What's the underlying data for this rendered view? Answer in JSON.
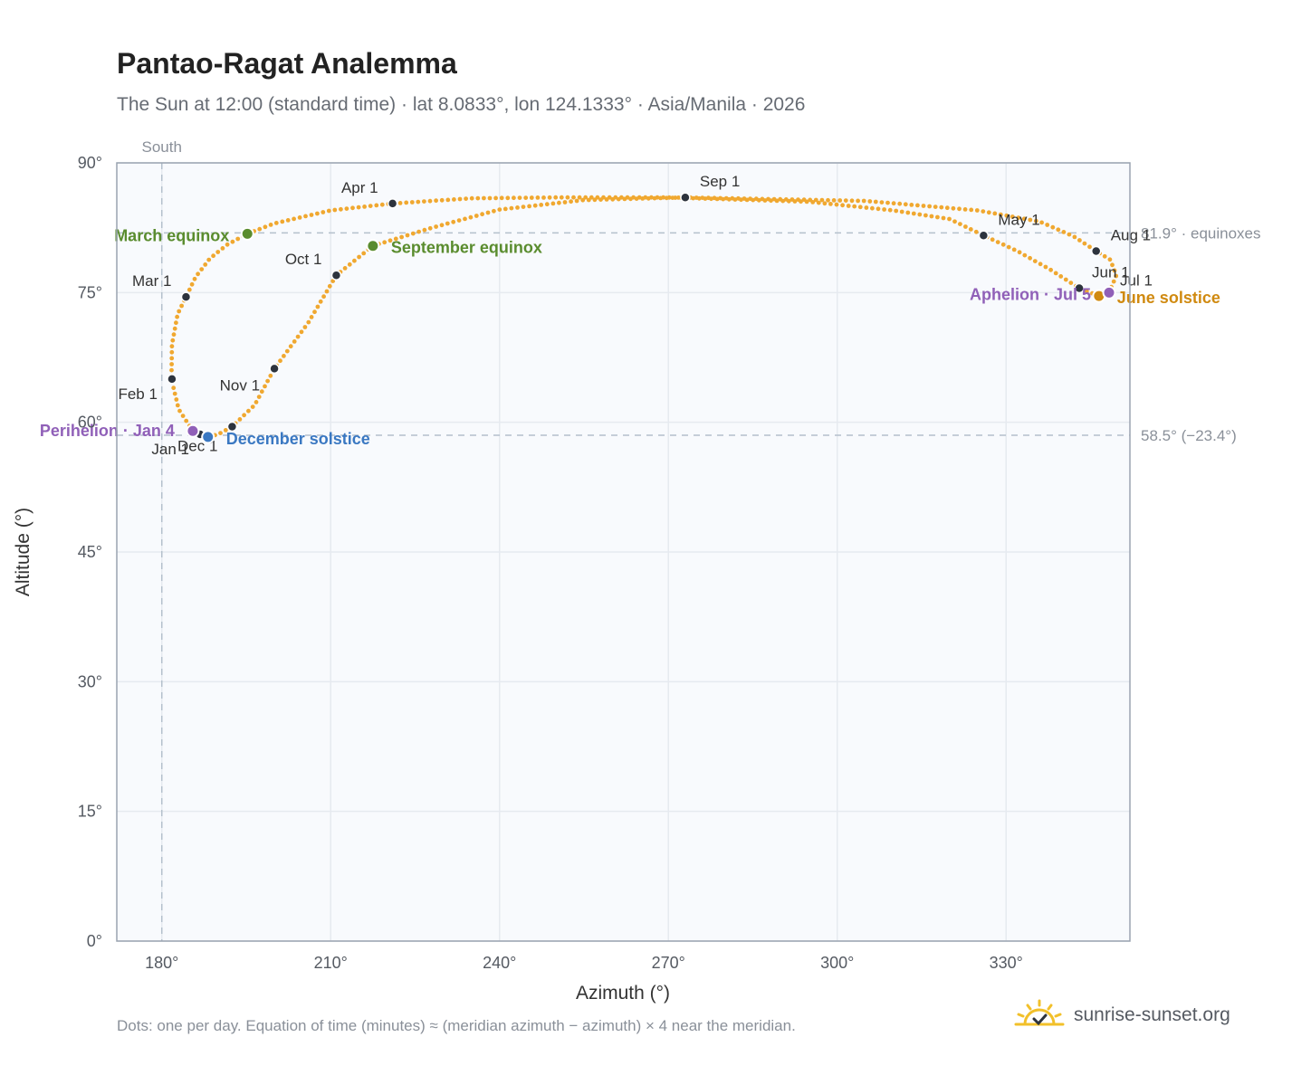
{
  "title": "Pantao-Ragat Analemma",
  "subtitle": "The Sun at 12:00 (standard time) · lat 8.0833°, lon 124.1333° · Asia/Manila · 2026",
  "footnote": "Dots: one per day. Equation of time (minutes) ≈ (meridian azimuth − azimuth) × 4 near the meridian.",
  "brand": {
    "name": "sunrise-sunset.org",
    "icon": "sun-logo-icon"
  },
  "colors": {
    "path": "#f0a830",
    "month_dot": "#2d333d",
    "equinox": "#5a8c2e",
    "december_solstice": "#3a78c2",
    "june_solstice": "#d08a10",
    "apsis": "#9060b8",
    "grid": "#e6eaf0",
    "plot_bg": "#f8fafd",
    "frame": "#9aa3b0",
    "ref_line": "#b4c0cc"
  },
  "chart_data": {
    "type": "scatter",
    "title": "Pantao-Ragat Analemma",
    "xlabel": "Azimuth (°)",
    "ylabel": "Altitude (°)",
    "xlim": [
      172,
      352
    ],
    "ylim": [
      0,
      90
    ],
    "x_ticks": [
      180,
      210,
      240,
      270,
      300,
      330
    ],
    "x_tick_labels": [
      "180°",
      "210°",
      "240°",
      "270°",
      "300°",
      "330°"
    ],
    "y_ticks": [
      0,
      15,
      30,
      45,
      60,
      75,
      90
    ],
    "y_tick_labels": [
      "0°",
      "15°",
      "30°",
      "45°",
      "60°",
      "75°",
      "90°"
    ],
    "grid": true,
    "meridian": {
      "azimuth": 180,
      "label": "South"
    },
    "reference_lines": [
      {
        "altitude": 81.9,
        "label": "81.9° · equinoxes"
      },
      {
        "altitude": 58.5,
        "label": "58.5° (−23.4°)"
      }
    ],
    "path_points": [
      [
        185.5,
        59.0
      ],
      [
        183.0,
        61.5
      ],
      [
        181.7,
        65.0
      ],
      [
        181.8,
        69.0
      ],
      [
        182.8,
        72.5
      ],
      [
        184.3,
        74.5
      ],
      [
        186.0,
        76.8
      ],
      [
        188.5,
        78.9
      ],
      [
        191.5,
        80.5
      ],
      [
        195.2,
        81.8
      ],
      [
        200.0,
        83.0
      ],
      [
        210.0,
        84.5
      ],
      [
        221.0,
        85.3
      ],
      [
        235.0,
        85.9
      ],
      [
        250.0,
        86.0
      ],
      [
        270.0,
        86.0
      ],
      [
        280.0,
        85.8
      ],
      [
        295.0,
        85.5
      ],
      [
        310.0,
        84.5
      ],
      [
        320.0,
        83.5
      ],
      [
        326.0,
        81.6
      ],
      [
        332.0,
        79.8
      ],
      [
        338.0,
        77.6
      ],
      [
        343.0,
        75.5
      ],
      [
        346.5,
        74.6
      ],
      [
        348.3,
        75.0
      ],
      [
        349.6,
        77.0
      ],
      [
        348.5,
        78.8
      ],
      [
        346.0,
        79.8
      ],
      [
        342.0,
        81.5
      ],
      [
        336.0,
        83.2
      ],
      [
        325.0,
        84.5
      ],
      [
        305.0,
        85.6
      ],
      [
        273.0,
        86.0
      ],
      [
        255.0,
        85.7
      ],
      [
        240.0,
        84.6
      ],
      [
        228.0,
        82.5
      ],
      [
        217.5,
        80.4
      ],
      [
        211.0,
        77.0
      ],
      [
        206.0,
        71.5
      ],
      [
        200.0,
        66.2
      ],
      [
        196.5,
        62.0
      ],
      [
        192.5,
        59.5
      ],
      [
        190.0,
        58.6
      ],
      [
        188.2,
        58.3
      ],
      [
        186.6,
        58.5
      ],
      [
        185.5,
        59.0
      ]
    ],
    "month_markers": [
      {
        "label": "Jan 1",
        "x": 186.8,
        "y": 58.6
      },
      {
        "label": "Feb 1",
        "x": 181.8,
        "y": 65.0
      },
      {
        "label": "Mar 1",
        "x": 184.3,
        "y": 74.5
      },
      {
        "label": "Apr 1",
        "x": 221.0,
        "y": 85.3
      },
      {
        "label": "May 1",
        "x": 326.0,
        "y": 81.6
      },
      {
        "label": "Jun 1",
        "x": 343.0,
        "y": 75.5
      },
      {
        "label": "Jul 1",
        "x": 348.3,
        "y": 75.0
      },
      {
        "label": "Aug 1",
        "x": 346.0,
        "y": 79.8
      },
      {
        "label": "Sep 1",
        "x": 273.0,
        "y": 86.0
      },
      {
        "label": "Oct 1",
        "x": 211.0,
        "y": 77.0
      },
      {
        "label": "Nov 1",
        "x": 200.0,
        "y": 66.2
      },
      {
        "label": "Dec 1",
        "x": 192.5,
        "y": 59.5
      }
    ],
    "events": [
      {
        "label": "March equinox",
        "x": 195.2,
        "y": 81.8,
        "kind": "equinox"
      },
      {
        "label": "September equinox",
        "x": 217.5,
        "y": 80.4,
        "kind": "equinox"
      },
      {
        "label": "December solstice",
        "x": 188.2,
        "y": 58.3,
        "kind": "december_solstice"
      },
      {
        "label": "June solstice",
        "x": 346.5,
        "y": 74.6,
        "kind": "june_solstice"
      },
      {
        "label": "Perihelion · Jan 4",
        "x": 185.5,
        "y": 59.0,
        "kind": "apsis"
      },
      {
        "label": "Aphelion · Jul 5",
        "x": 348.3,
        "y": 75.0,
        "kind": "apsis"
      }
    ]
  }
}
